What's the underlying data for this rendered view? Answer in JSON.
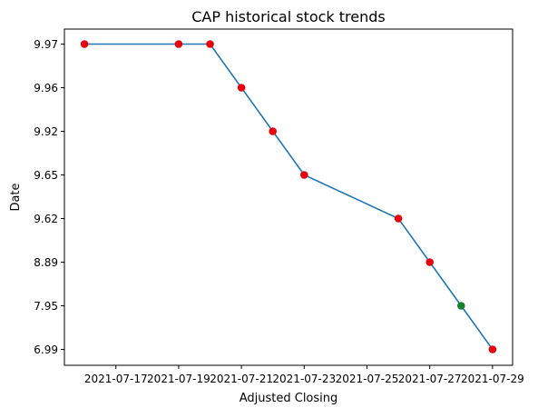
{
  "chart_data": {
    "type": "line",
    "title": "CAP historical stock trends",
    "xlabel": "Adjusted Closing",
    "ylabel": "Date",
    "x_tick_labels": [
      "2021-07-17",
      "2021-07-19",
      "2021-07-21",
      "2021-07-23",
      "2021-07-25",
      "2021-07-27",
      "2021-07-29"
    ],
    "y_tick_labels": [
      "9.97",
      "9.96",
      "9.92",
      "9.65",
      "9.62",
      "8.89",
      "7.95",
      "6.99"
    ],
    "grid": false,
    "series": [
      {
        "points": [
          {
            "x": "2021-07-16",
            "y": "9.97",
            "marker": "red"
          },
          {
            "x": "2021-07-19",
            "y": "9.97",
            "marker": "red"
          },
          {
            "x": "2021-07-20",
            "y": "9.97",
            "marker": "red"
          },
          {
            "x": "2021-07-21",
            "y": "9.96",
            "marker": "red"
          },
          {
            "x": "2021-07-22",
            "y": "9.92",
            "marker": "red"
          },
          {
            "x": "2021-07-23",
            "y": "9.65",
            "marker": "red"
          },
          {
            "x": "2021-07-26",
            "y": "9.62",
            "marker": "red"
          },
          {
            "x": "2021-07-27",
            "y": "8.89",
            "marker": "red"
          },
          {
            "x": "2021-07-28",
            "y": "7.95",
            "marker": "green"
          },
          {
            "x": "2021-07-29",
            "y": "6.99",
            "marker": "red"
          }
        ]
      }
    ],
    "colors": {
      "line": "#1f77b4",
      "red": "#e8000b",
      "green": "#1a7f2e",
      "axes": "#000000"
    }
  }
}
